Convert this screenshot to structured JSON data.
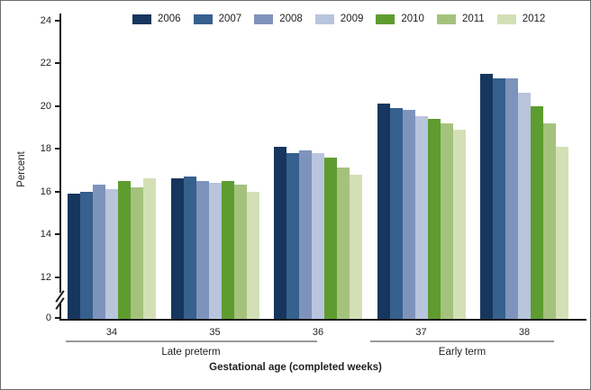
{
  "figure": {
    "border_color": "#6d6d6d",
    "background": "#ffffff",
    "axis_color": "#1a1a1a",
    "bracket_color": "#999999"
  },
  "legend": {
    "position": "top",
    "items": [
      {
        "label": "2006",
        "color": "#17365D"
      },
      {
        "label": "2007",
        "color": "#36608E"
      },
      {
        "label": "2008",
        "color": "#7E93BB"
      },
      {
        "label": "2009",
        "color": "#B9C4DD"
      },
      {
        "label": "2010",
        "color": "#5E9C2F"
      },
      {
        "label": "2011",
        "color": "#A5C27D"
      },
      {
        "label": "2012",
        "color": "#D3E0B6"
      }
    ]
  },
  "chart_data": {
    "type": "bar",
    "title": "",
    "xlabel": "Gestational age (completed weeks)",
    "ylabel": "Percent",
    "categories": [
      "34",
      "35",
      "36",
      "37",
      "38"
    ],
    "category_groups": [
      {
        "label": "Late preterm",
        "categories": [
          "34",
          "35",
          "36"
        ]
      },
      {
        "label": "Early term",
        "categories": [
          "37",
          "38"
        ]
      }
    ],
    "series": [
      {
        "name": "2006",
        "color": "#17365D",
        "values": [
          15.9,
          16.6,
          18.1,
          20.1,
          21.5
        ]
      },
      {
        "name": "2007",
        "color": "#36608E",
        "values": [
          16.0,
          16.7,
          17.8,
          19.9,
          21.3
        ]
      },
      {
        "name": "2008",
        "color": "#7E93BB",
        "values": [
          16.3,
          16.5,
          17.9,
          19.8,
          21.3
        ]
      },
      {
        "name": "2009",
        "color": "#B9C4DD",
        "values": [
          16.1,
          16.4,
          17.8,
          19.5,
          20.6
        ]
      },
      {
        "name": "2010",
        "color": "#5E9C2F",
        "values": [
          16.5,
          16.5,
          17.6,
          19.4,
          20.0
        ]
      },
      {
        "name": "2011",
        "color": "#A5C27D",
        "values": [
          16.2,
          16.3,
          17.1,
          19.2,
          19.2
        ]
      },
      {
        "name": "2012",
        "color": "#D3E0B6",
        "values": [
          16.6,
          16.0,
          16.8,
          18.9,
          18.1
        ]
      }
    ],
    "y_ticks": [
      24,
      22,
      20,
      18,
      16,
      14,
      12,
      0
    ],
    "ylim_display": [
      12,
      24
    ],
    "axis_break": true,
    "grid": false,
    "legend_position": "top"
  }
}
